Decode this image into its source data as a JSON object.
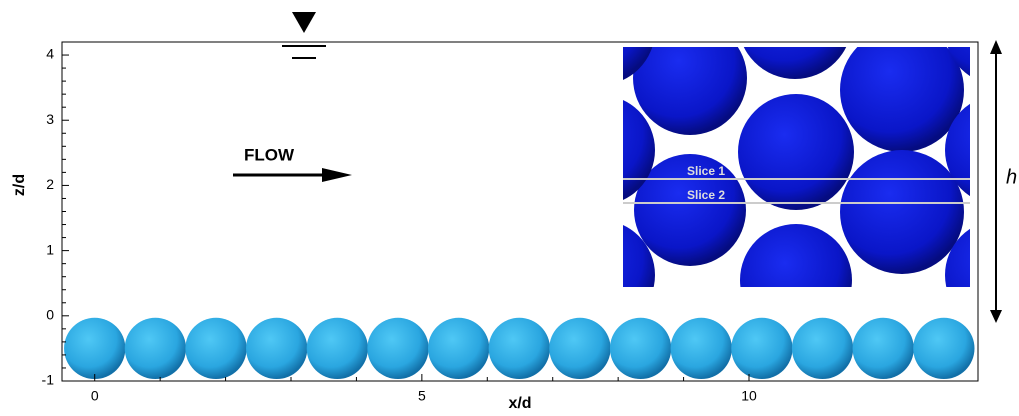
{
  "axes": {
    "xlabel": "x/d",
    "ylabel": "z/d",
    "xlim": [
      -0.5,
      13.5
    ],
    "ylim": [
      -1,
      4.2
    ],
    "xticks": [
      0,
      5,
      10
    ],
    "yticks": [
      -1,
      0,
      1,
      2,
      3,
      4
    ]
  },
  "annotations": {
    "flow": "FLOW",
    "height": "h"
  },
  "inset": {
    "slice_1": "Slice 1",
    "slice_2": "Slice 2"
  }
}
